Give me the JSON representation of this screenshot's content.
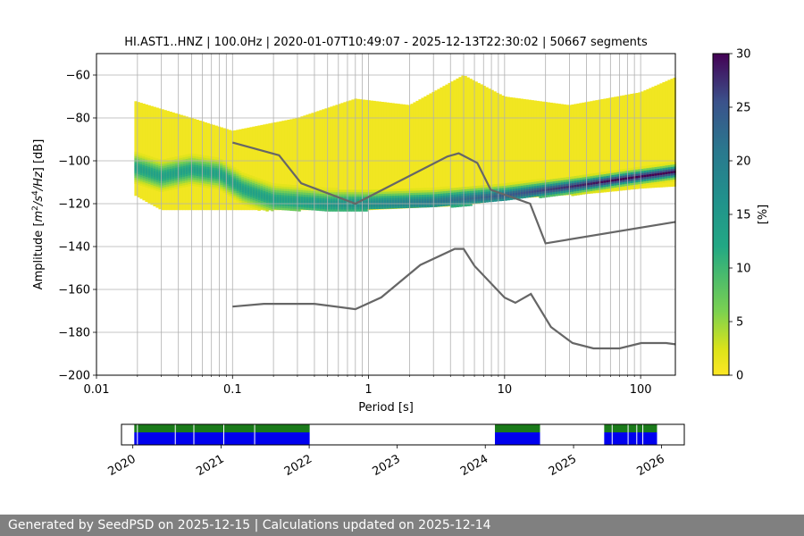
{
  "title": "HI.AST1..HNZ | 100.0Hz | 2020-01-07T10:49:07 - 2025-12-13T22:30:02 | 50667 segments",
  "footer": "Generated by SeedPSD on 2025-12-15 | Calculations updated on 2025-12-14",
  "colors": {
    "nlnm_nhnm": "#666666",
    "grid": "#b0b0b0",
    "coverage_present": "#1a7a1a",
    "coverage_used": "#0000ee",
    "footer_bg": "#808080"
  },
  "chart_data": [
    {
      "type": "heatmap",
      "title": "HI.AST1..HNZ | 100.0Hz | 2020-01-07T10:49:07 - 2025-12-13T22:30:02 | 50667 segments",
      "xlabel": "Period [s]",
      "ylabel": "Amplitude [$m^2/s^4/Hz$] [dB]",
      "xscale": "log",
      "xlim": [
        0.01,
        180
      ],
      "ylim": [
        -200,
        -50
      ],
      "xticks": [
        "0.01",
        "0.1",
        "1",
        "10",
        "100"
      ],
      "yticks": [
        "−200",
        "−180",
        "−160",
        "−140",
        "−120",
        "−100",
        "−80",
        "−60"
      ],
      "colorbar": {
        "label": "[%]",
        "range": [
          0,
          30
        ],
        "ticks": [
          "0",
          "5",
          "10",
          "15",
          "20",
          "25",
          "30"
        ],
        "colormap": "viridis_r"
      },
      "psd_distribution": {
        "period_range": [
          0.019,
          180
        ],
        "mode": [
          {
            "period": 0.019,
            "db": -103
          },
          {
            "period": 0.03,
            "db": -107
          },
          {
            "period": 0.05,
            "db": -104
          },
          {
            "period": 0.08,
            "db": -106
          },
          {
            "period": 0.12,
            "db": -113
          },
          {
            "period": 0.2,
            "db": -118
          },
          {
            "period": 0.5,
            "db": -120
          },
          {
            "period": 1,
            "db": -120
          },
          {
            "period": 3,
            "db": -119
          },
          {
            "period": 10,
            "db": -116
          },
          {
            "period": 30,
            "db": -112
          },
          {
            "period": 80,
            "db": -108
          },
          {
            "period": 180,
            "db": -105
          }
        ],
        "upper_envelope": [
          {
            "period": 0.019,
            "db": -72
          },
          {
            "period": 0.05,
            "db": -80
          },
          {
            "period": 0.1,
            "db": -86
          },
          {
            "period": 0.3,
            "db": -80
          },
          {
            "period": 0.8,
            "db": -71
          },
          {
            "period": 2,
            "db": -74
          },
          {
            "period": 5,
            "db": -60
          },
          {
            "period": 10,
            "db": -70
          },
          {
            "period": 30,
            "db": -74
          },
          {
            "period": 100,
            "db": -68
          },
          {
            "period": 180,
            "db": -61
          }
        ],
        "lower_envelope": [
          {
            "period": 0.019,
            "db": -116
          },
          {
            "period": 0.03,
            "db": -123
          },
          {
            "period": 1,
            "db": -123
          },
          {
            "period": 5,
            "db": -121
          },
          {
            "period": 10,
            "db": -118
          },
          {
            "period": 50,
            "db": -115
          },
          {
            "period": 100,
            "db": -113
          },
          {
            "period": 180,
            "db": -112
          }
        ]
      },
      "series": [
        {
          "kind": "NHNM",
          "x": [
            0.1,
            0.22,
            0.32,
            0.8,
            3.8,
            4.6,
            6.3,
            7.9,
            15.4,
            20,
            180
          ],
          "y": [
            -91.5,
            -97.4,
            -110.5,
            -120,
            -98,
            -96.5,
            -101,
            -113.5,
            -120,
            -138.5,
            -128.5
          ]
        },
        {
          "kind": "NLNM",
          "x": [
            0.1,
            0.17,
            0.4,
            0.8,
            1.24,
            2.4,
            4.3,
            5,
            6,
            10,
            12,
            15.6,
            21.9,
            31.6,
            45,
            70,
            101,
            154,
            180
          ],
          "y": [
            -168,
            -166.7,
            -166.7,
            -169.2,
            -163.7,
            -148.6,
            -141.1,
            -141.1,
            -149,
            -163.8,
            -166.2,
            -162.1,
            -177.5,
            -185,
            -187.5,
            -187.5,
            -185,
            -185,
            -185.6
          ]
        }
      ],
      "grid": true
    },
    {
      "type": "timeline",
      "xticks": [
        "2020",
        "2021",
        "2022",
        "2023",
        "2024",
        "2025",
        "2026"
      ],
      "xlim": [
        "2019-11-15",
        "2026-04-05"
      ],
      "segments": [
        {
          "start": "2020-01-07",
          "end": "2022-01-03"
        },
        {
          "start": "2024-02-10",
          "end": "2024-08-15"
        },
        {
          "start": "2025-05-08",
          "end": "2025-12-13"
        }
      ],
      "gaps": [
        "2020-01-20",
        "2020-06-25",
        "2020-09-10",
        "2021-01-12",
        "2021-05-20",
        "2025-06-10",
        "2025-08-15",
        "2025-09-20",
        "2025-10-15"
      ]
    }
  ]
}
